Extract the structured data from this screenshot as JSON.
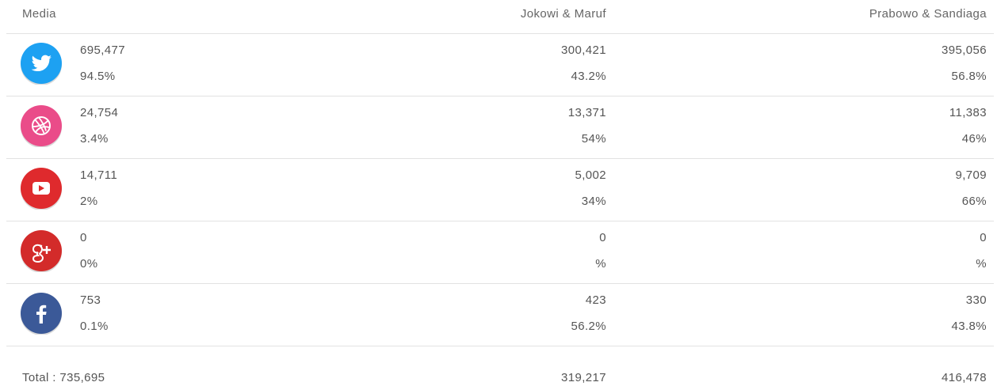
{
  "table": {
    "header": [
      "Media",
      "Jokowi & Maruf",
      "Prabowo & Sandiaga"
    ],
    "rows": [
      [
        "695,477",
        "94.5%",
        "300,421",
        "43.2%",
        "395,056",
        "56.8%"
      ],
      [
        "24,754",
        "3.4%",
        "13,371",
        "54%",
        "11,383",
        "46%"
      ],
      [
        "14,711",
        "2%",
        "5,002",
        "34%",
        "9,709",
        "66%"
      ],
      [
        "0",
        "0%",
        "0",
        "%",
        "0",
        "%"
      ],
      [
        "753",
        "0.1%",
        "423",
        "56.2%",
        "330",
        "43.8%"
      ]
    ],
    "footer": [
      "Total : 735,695",
      "319,217",
      "416,478"
    ]
  }
}
